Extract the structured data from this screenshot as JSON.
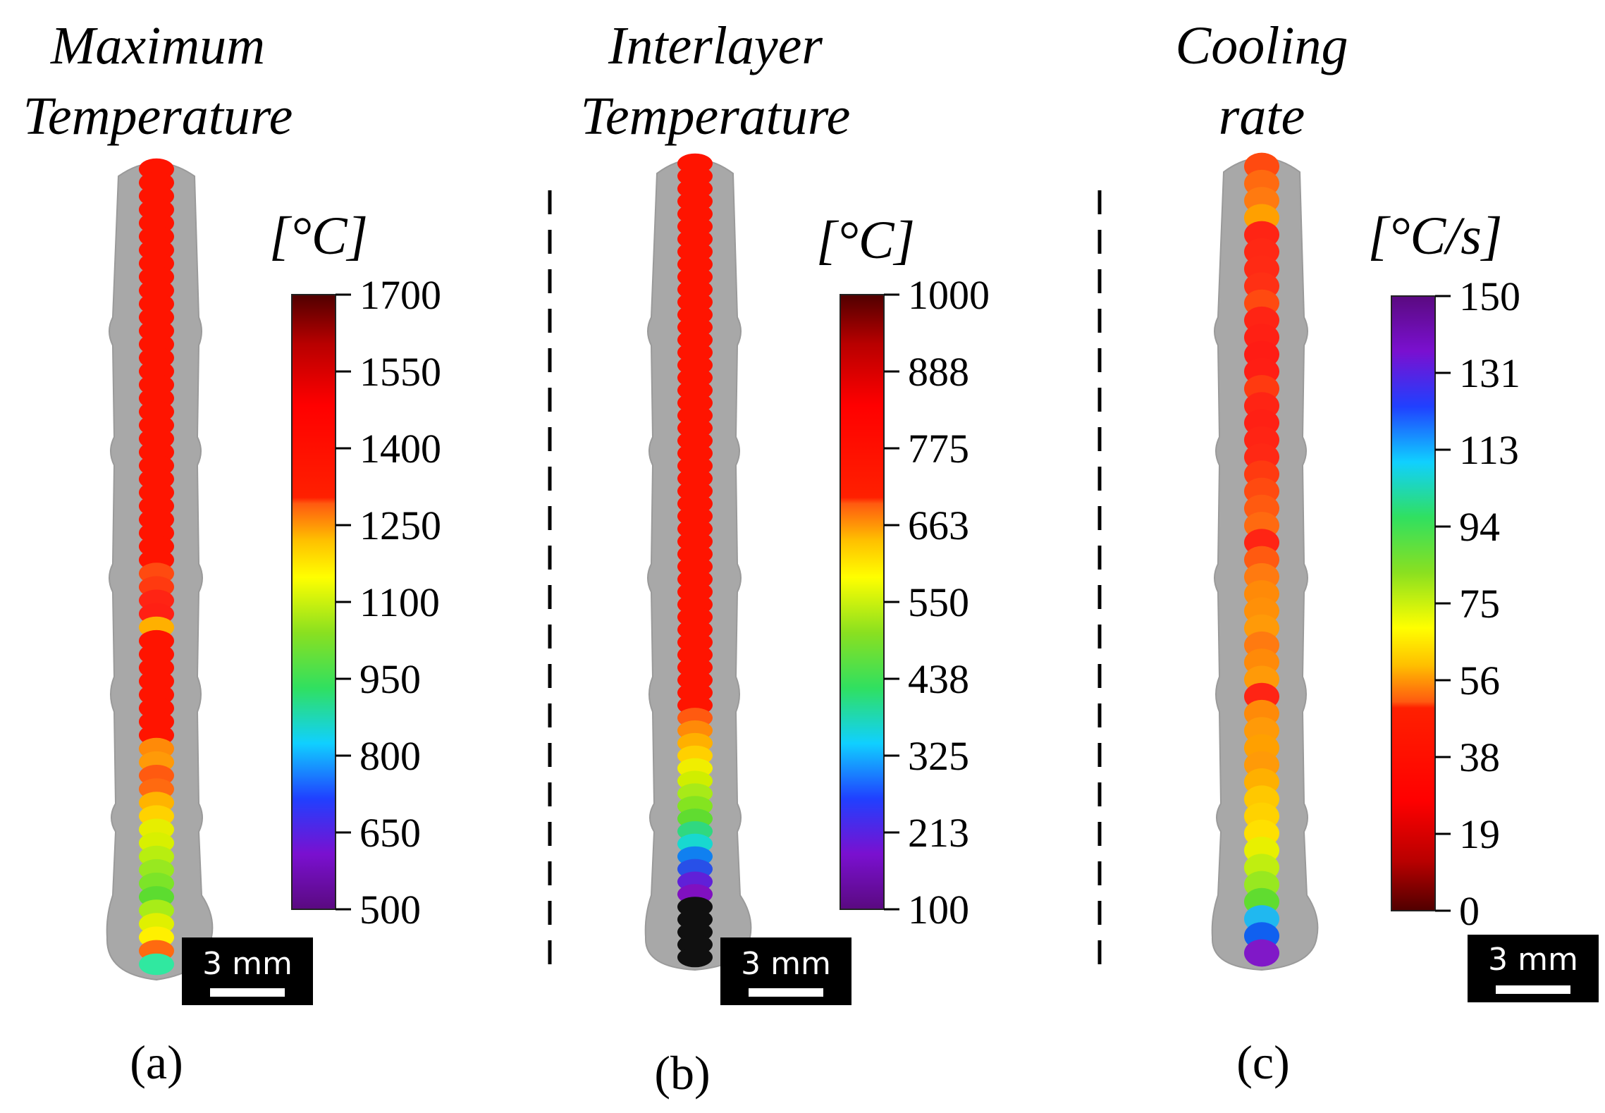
{
  "panels": [
    {
      "id": "a",
      "title_line1": "Maximum",
      "title_line2": "Temperature",
      "unit": "[°C]",
      "ticks": [
        "1700",
        "1550",
        "1400",
        "1250",
        "1100",
        "950",
        "800",
        "650",
        "500"
      ],
      "colormap": "rainbow",
      "scale_bar": "3 mm",
      "label": "(a)",
      "bead_colors": [
        "#ff1400",
        "#ff1400",
        "#ff1400",
        "#ff1400",
        "#ff1400",
        "#ff1400",
        "#ff1400",
        "#ff1400",
        "#ff1400",
        "#ff1400",
        "#ff1400",
        "#ff1400",
        "#ff1400",
        "#ff1400",
        "#ff1400",
        "#ff1400",
        "#ff1400",
        "#ff1400",
        "#ff1400",
        "#ff1400",
        "#ff1400",
        "#ff1400",
        "#ff1400",
        "#ff1400",
        "#ff1400",
        "#ff1400",
        "#ff1400",
        "#ff1400",
        "#ff1400",
        "#ff1400",
        "#ff4a10",
        "#ff3a10",
        "#ff2414",
        "#ff2014",
        "#ffb000",
        "#ff1400",
        "#ff1400",
        "#ff1400",
        "#ff1400",
        "#ff1400",
        "#ff1400",
        "#ff1400",
        "#ff1400",
        "#ff8a08",
        "#ff9a08",
        "#ff5a10",
        "#ff6a10",
        "#ffb400",
        "#ffd200",
        "#e6ee00",
        "#d8f000",
        "#b8ee10",
        "#98e820",
        "#7ce428",
        "#5cdc30",
        "#a8ec18",
        "#e0f000",
        "#fff000",
        "#ff6a10",
        "#30e8a0"
      ]
    },
    {
      "id": "b",
      "title_line1": "Interlayer",
      "title_line2": "Temperature",
      "unit": "[°C]",
      "ticks": [
        "1000",
        "888",
        "775",
        "663",
        "550",
        "438",
        "325",
        "213",
        "100"
      ],
      "colormap": "rainbow",
      "scale_bar": "3 mm",
      "label": "(b)",
      "bead_colors": [
        "#ff1400",
        "#ff1400",
        "#ff1400",
        "#ff1400",
        "#ff1400",
        "#ff1400",
        "#ff1400",
        "#ff1400",
        "#ff1400",
        "#ff1400",
        "#ff1400",
        "#ff1400",
        "#ff1400",
        "#ff1400",
        "#ff1400",
        "#ff1400",
        "#ff1400",
        "#ff1400",
        "#ff1400",
        "#ff1400",
        "#ff1400",
        "#ff1400",
        "#ff1400",
        "#ff1400",
        "#ff1400",
        "#ff1400",
        "#ff1400",
        "#ff1400",
        "#ff1400",
        "#ff1400",
        "#ff1400",
        "#ff1400",
        "#ff1400",
        "#ff1400",
        "#ff1400",
        "#ff1400",
        "#ff1400",
        "#ff1400",
        "#ff1400",
        "#ff1400",
        "#ff1400",
        "#ff1400",
        "#ff1400",
        "#ff1400",
        "#ff5a10",
        "#ff8a08",
        "#ffb000",
        "#ffd000",
        "#f0ee00",
        "#d0ee00",
        "#a8ea18",
        "#84e420",
        "#60dc30",
        "#30d880",
        "#18d8d0",
        "#1080f0",
        "#2850e8",
        "#6020d8",
        "#8010c0",
        "#101010",
        "#101010",
        "#101010",
        "#101010",
        "#101010"
      ]
    },
    {
      "id": "c",
      "title_line1": "Cooling",
      "title_line2": "rate",
      "unit": "[°C/s]",
      "ticks": [
        "150",
        "131",
        "113",
        "94",
        "75",
        "56",
        "38",
        "19",
        "0"
      ],
      "colormap": "rainbow_reversed",
      "scale_bar": "3 mm",
      "label": "(c)",
      "bead_colors": [
        "#ff4a10",
        "#ff6a10",
        "#ff7a10",
        "#ffa000",
        "#ff2414",
        "#ff2814",
        "#ff2a14",
        "#ff3014",
        "#ff4a10",
        "#ff2414",
        "#ff2014",
        "#ff1c14",
        "#ff1e14",
        "#ff3a10",
        "#ff2414",
        "#ff2014",
        "#ff2414",
        "#ff2814",
        "#ff3a10",
        "#ff4a10",
        "#ff5a10",
        "#ff6a10",
        "#ff2414",
        "#ff5a10",
        "#ff7a10",
        "#ff8a08",
        "#ff9008",
        "#ff9a08",
        "#ff7a10",
        "#ff8a08",
        "#ff9a08",
        "#ff2414",
        "#ff8a08",
        "#ff9a08",
        "#ffa000",
        "#ff9a08",
        "#ffb000",
        "#ffc800",
        "#ffd200",
        "#ffe000",
        "#e8f000",
        "#c0ee10",
        "#98e820",
        "#60dc30",
        "#20b8f0",
        "#1060f0",
        "#8018c8"
      ]
    }
  ]
}
